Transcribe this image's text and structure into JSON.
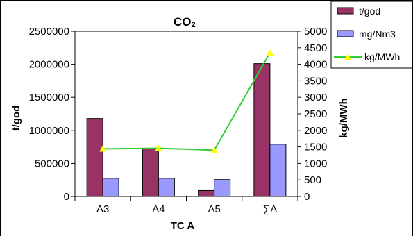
{
  "chart_data": {
    "type": "bar+line",
    "title": "CO",
    "title_subscript": "2",
    "categories": [
      "A3",
      "A4",
      "A5",
      "∑A"
    ],
    "xlabel": "TC A",
    "ylabel_left": "t/god",
    "ylabel_right": "kg/MWh",
    "ylim_left": [
      0,
      2500000
    ],
    "ylim_right": [
      0,
      5000
    ],
    "yticks_left": [
      "0",
      "500000",
      "1000000",
      "1500000",
      "2000000",
      "2500000"
    ],
    "yticks_right": [
      "0",
      "500",
      "1000",
      "1500",
      "2000",
      "2500",
      "3000",
      "3500",
      "4000",
      "4500",
      "5000"
    ],
    "grid": false,
    "legend_position": "top-right",
    "series": [
      {
        "name": "t/god",
        "kind": "bar",
        "axis": "left",
        "color": "#993366",
        "values": [
          1180000,
          720000,
          90000,
          2010000
        ]
      },
      {
        "name": "mg/Nm3",
        "kind": "bar",
        "axis": "right",
        "color": "#9999ff",
        "values": [
          550,
          550,
          510,
          1580
        ]
      },
      {
        "name": "kg/MWh",
        "kind": "line",
        "axis": "right",
        "color": "#33cc33",
        "marker_color": "#ffff00",
        "values": [
          1440,
          1460,
          1400,
          4350
        ]
      }
    ]
  }
}
